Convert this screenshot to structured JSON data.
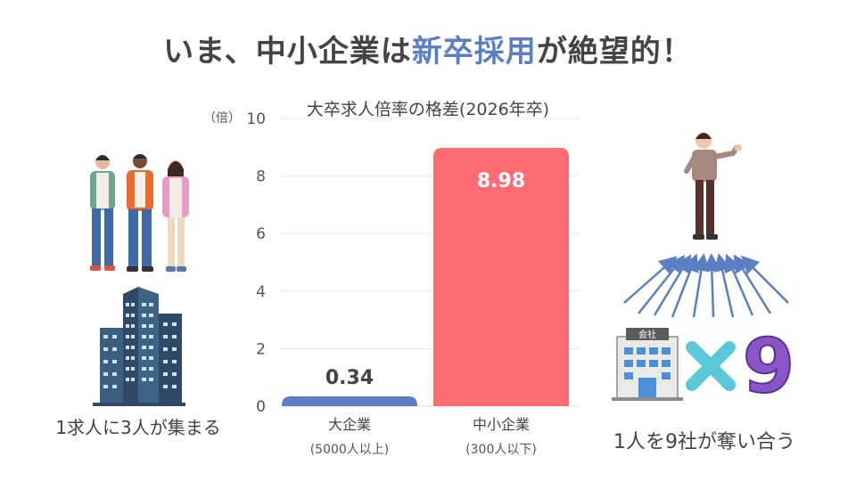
{
  "title": {
    "part1": "いま、中小企業は",
    "highlight": "新卒採用",
    "part2": "が絶望的！"
  },
  "unit_label": "（倍）",
  "left_caption": "1求人に3人が集まる",
  "right_caption": "1人を9社が奪い合う",
  "right_illustration": {
    "building_sign": "会社",
    "multiplier": "9"
  },
  "colors": {
    "large": "#5b7ec5",
    "small": "#ff6b72",
    "accent": "#5a7fc4",
    "multiplier": "#8a55c7",
    "cross": "#5bc8d8"
  },
  "chart_data": {
    "type": "bar",
    "title": "大卒求人倍率の格差(2026年卒)",
    "categories": [
      "大企業",
      "中小企業"
    ],
    "category_sublabels": [
      "(5000人以上)",
      "(300人以下)"
    ],
    "values": [
      0.34,
      8.98
    ],
    "value_labels": [
      "0.34",
      "8.98"
    ],
    "ylim": [
      0,
      10
    ],
    "yticks": [
      "0",
      "2",
      "4",
      "6",
      "8",
      "10"
    ],
    "grid": true
  }
}
